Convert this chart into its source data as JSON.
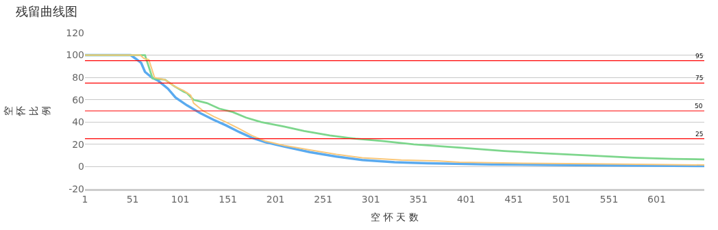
{
  "chart_data": {
    "type": "line",
    "title": "残留曲线图",
    "xlabel": "空 怀 天 数",
    "ylabel": "空怀比例",
    "xlim": [
      1,
      651
    ],
    "xticks": [
      1,
      51,
      101,
      151,
      201,
      251,
      301,
      351,
      401,
      451,
      501,
      551,
      601
    ],
    "ylim": [
      -20,
      120
    ],
    "yticks": [
      -20,
      0,
      20,
      40,
      60,
      80,
      100,
      120
    ],
    "grid": "y",
    "marker": "none",
    "line_style": "solid",
    "series": [
      {
        "color": "#5aaaef",
        "x": [
          1,
          49,
          54,
          60,
          64,
          71,
          78,
          88,
          96,
          108,
          122,
          136,
          149,
          163,
          176,
          190,
          210,
          237,
          265,
          292,
          326,
          360,
          428,
          496,
          564,
          651
        ],
        "values": [
          100,
          100,
          97,
          93,
          85,
          80,
          77,
          70,
          62,
          55,
          48,
          42,
          37,
          31,
          26,
          22,
          18,
          13,
          9,
          6,
          4,
          3,
          2,
          1.5,
          1,
          0.5
        ]
      },
      {
        "color": "#7dd68c",
        "x": [
          1,
          64,
          72,
          85,
          95,
          105,
          108,
          115,
          129,
          142,
          156,
          170,
          186,
          210,
          231,
          258,
          285,
          312,
          346,
          394,
          441,
          482,
          530,
          577,
          618,
          651
        ],
        "values": [
          100,
          100,
          79,
          78,
          72,
          67,
          66,
          60,
          57,
          52,
          49,
          44,
          40,
          36,
          32,
          28,
          25,
          23,
          20,
          17,
          14,
          12,
          10,
          8,
          7,
          6.5
        ]
      },
      {
        "color": "#f9c77a",
        "x": [
          1,
          59,
          63,
          68,
          74,
          85,
          95,
          105,
          112,
          115,
          125,
          136,
          149,
          163,
          176,
          190,
          210,
          237,
          265,
          292,
          333,
          373,
          394,
          462,
          530,
          598,
          651
        ],
        "values": [
          100,
          100,
          97,
          96,
          80,
          78,
          72,
          68,
          64,
          57,
          50,
          45,
          40,
          34,
          28,
          23,
          19,
          15,
          11,
          8,
          6,
          5,
          4,
          3,
          2.5,
          2,
          1.5
        ]
      }
    ],
    "ref_lines": [
      {
        "axis": "y",
        "value": 95,
        "label": "95",
        "color": "#ff0000"
      },
      {
        "axis": "y",
        "value": 75,
        "label": "75",
        "color": "#ff0000"
      },
      {
        "axis": "y",
        "value": 50,
        "label": "50",
        "color": "#ff0000"
      },
      {
        "axis": "y",
        "value": 25,
        "label": "25",
        "color": "#ff0000"
      }
    ]
  }
}
